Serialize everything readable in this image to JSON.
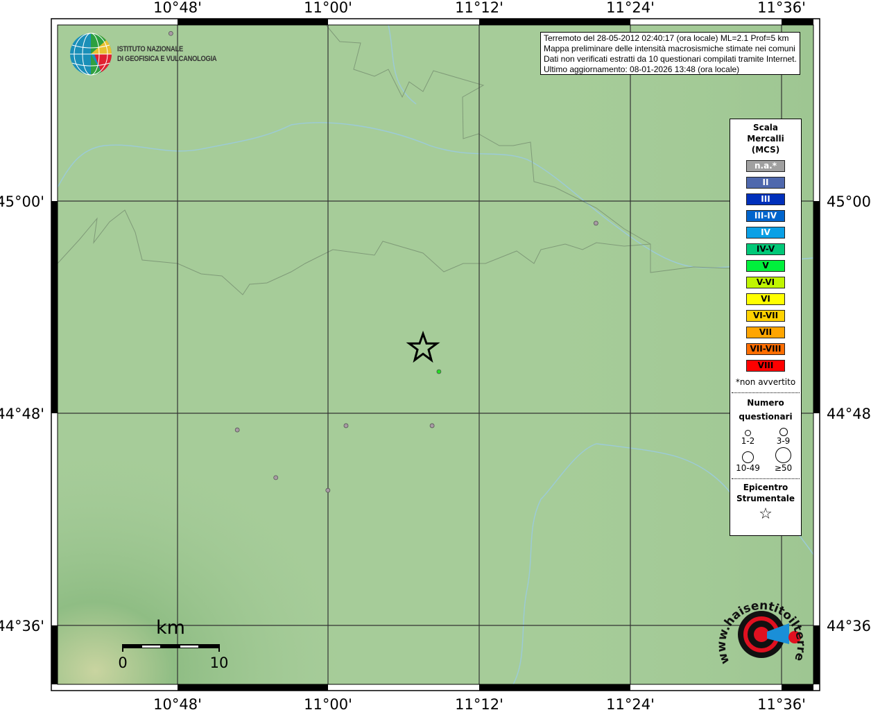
{
  "map": {
    "extent": {
      "lon_min": 10.641,
      "lon_max": 11.642,
      "lat_min": 44.544,
      "lat_max": 45.166
    },
    "lon_ticks": [
      "10°48'",
      "11°00'",
      "11°12'",
      "11°24'",
      "11°36'"
    ],
    "lat_ticks": [
      "45°00'",
      "44°48'",
      "44°36'"
    ],
    "colors": {
      "terrain": "#a6cc99",
      "boundary": "#7f9a78",
      "river": "#9ccbd8",
      "point": "#a89aa4",
      "felt_point": "#22dd22"
    },
    "points": [
      {
        "lon": 10.791,
        "lat": 45.158,
        "intensity": "n.a."
      },
      {
        "lon": 11.354,
        "lat": 44.979,
        "intensity": "n.a."
      },
      {
        "lon": 10.879,
        "lat": 44.784,
        "intensity": "n.a."
      },
      {
        "lon": 11.023,
        "lat": 44.788,
        "intensity": "n.a."
      },
      {
        "lon": 11.137,
        "lat": 44.788,
        "intensity": "n.a."
      },
      {
        "lon": 10.93,
        "lat": 44.739,
        "intensity": "n.a."
      },
      {
        "lon": 10.999,
        "lat": 44.727,
        "intensity": "n.a."
      },
      {
        "lon": 11.146,
        "lat": 44.839,
        "intensity": "V"
      }
    ],
    "epicenter": {
      "lon": 11.125,
      "lat": 44.861
    },
    "scalebar": {
      "unit": "km",
      "start": "0",
      "end": "10"
    }
  },
  "info": {
    "line1": "Terremoto del 28-05-2012 02:40:17 (ora locale) ML=2.1 Prof=5 km",
    "line2": "Mappa preliminare delle intensità macrosismiche stimate nei comuni",
    "line3": "Dati non verificati estratti da 10 questionari compilati tramite Internet.",
    "line4": "Ultimo aggiornamento: 08-01-2026 13:48 (ora locale)"
  },
  "logo_ingv": {
    "line1": "ISTITUTO NAZIONALE",
    "line2": "DI GEOFISICA E VULCANOLOGIA"
  },
  "logo_hsit": {
    "text": "www.haisentitoilterremoto.it"
  },
  "legend": {
    "title1": "Scala",
    "title2": "Mercalli",
    "title3": "(MCS)",
    "scale": [
      {
        "label": "n.a.*",
        "color": "#a0a0a0",
        "text": "#ffffff"
      },
      {
        "label": "II",
        "color": "#4f68ad",
        "text": "#ffffff"
      },
      {
        "label": "III",
        "color": "#0030bb",
        "text": "#ffffff"
      },
      {
        "label": "III-IV",
        "color": "#0064cc",
        "text": "#ffffff"
      },
      {
        "label": "IV",
        "color": "#0aa0e6",
        "text": "#ffffff"
      },
      {
        "label": "IV-V",
        "color": "#00c878",
        "text": "#000000"
      },
      {
        "label": "V",
        "color": "#00f03c",
        "text": "#000000"
      },
      {
        "label": "V-VI",
        "color": "#c0f500",
        "text": "#000000"
      },
      {
        "label": "VI",
        "color": "#ffff00",
        "text": "#000000"
      },
      {
        "label": "VI-VII",
        "color": "#ffd200",
        "text": "#000000"
      },
      {
        "label": "VII",
        "color": "#ffa500",
        "text": "#000000"
      },
      {
        "label": "VII-VIII",
        "color": "#ff6e00",
        "text": "#000000"
      },
      {
        "label": "VIII",
        "color": "#ff0000",
        "text": "#000000"
      }
    ],
    "note": "*non avvertito",
    "count_title1": "Numero",
    "count_title2": "questionari",
    "counts": [
      "1-2",
      "3-9",
      "10-49",
      "≥50"
    ],
    "epi_title1": "Epicentro",
    "epi_title2": "Strumentale"
  }
}
